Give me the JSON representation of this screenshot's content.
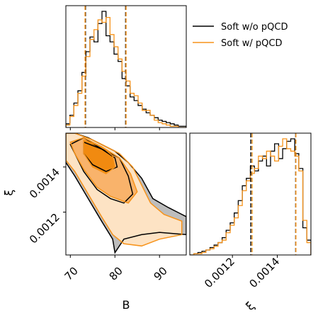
{
  "chart_data": {
    "type": "corner",
    "colors": {
      "soft": "#000000",
      "pqcd": "#f7931a",
      "pqcd_fill": [
        "#fde3c4",
        "#f9b36b",
        "#f18a10"
      ],
      "soft_fill": "#bdbdbd"
    },
    "legend": {
      "placement": "top-right",
      "entries": [
        {
          "label": "Soft w/o pQCD",
          "color": "#000000"
        },
        {
          "label": "Soft w/ pQCD",
          "color": "#f7931a"
        }
      ]
    },
    "axes": {
      "B": {
        "label": "B",
        "range": [
          69,
          96
        ],
        "ticks": [
          70,
          80,
          90
        ],
        "tick_labels": [
          "70",
          "80",
          "90"
        ]
      },
      "xi": {
        "label": "ξ",
        "range": [
          0.00101,
          0.00155
        ],
        "ticks": [
          0.0012,
          0.0014
        ],
        "tick_labels": [
          "0.0012",
          "0.0014"
        ]
      }
    },
    "panels": {
      "B_hist": {
        "bin_edges": [
          69,
          69.9,
          70.8,
          71.7,
          72.6,
          73.5,
          74.4,
          75.3,
          76.2,
          77.1,
          78.0,
          78.9,
          79.8,
          80.7,
          81.6,
          82.5,
          83.4,
          84.3,
          85.2,
          86.1,
          87.0,
          87.9,
          88.8,
          89.7,
          90.6,
          91.5,
          92.4,
          93.3,
          94.2,
          95.1,
          96.0
        ],
        "series": [
          {
            "name": "Soft w/o pQCD",
            "values": [
              3,
              10,
              20,
              30,
              45,
              62,
              74,
              70,
              85,
              95,
              75,
              70,
              60,
              54,
              40,
              34,
              25,
              22,
              18,
              15,
              12,
              10,
              8,
              6,
              5,
              4,
              3,
              2,
              1,
              1
            ]
          },
          {
            "name": "Soft w/ pQCD",
            "values": [
              2,
              9,
              18,
              28,
              42,
              58,
              72,
              80,
              88,
              86,
              90,
              76,
              66,
              56,
              46,
              38,
              28,
              26,
              20,
              14,
              14,
              10,
              6,
              4,
              3,
              2,
              1,
              1,
              0,
              0
            ]
          }
        ],
        "quantile_lines": {
          "Soft w/o pQCD": [
            73.4,
            82.4
          ],
          "Soft w/ pQCD": [
            73.3,
            82.5
          ]
        }
      },
      "xi_hist": {
        "bin_edges": [
          0.00101,
          0.001028,
          0.001046,
          0.001064,
          0.001082,
          0.0011,
          0.001118,
          0.001136,
          0.001154,
          0.001172,
          0.00119,
          0.001208,
          0.001226,
          0.001244,
          0.001262,
          0.00128,
          0.001298,
          0.001316,
          0.001334,
          0.001352,
          0.00137,
          0.001388,
          0.001406,
          0.001424,
          0.001442,
          0.00146,
          0.001478,
          0.001496,
          0.001514,
          0.001532,
          0.00155
        ],
        "series": [
          {
            "name": "Soft w/o pQCD",
            "values": [
              0,
              1,
              2,
              3,
              4,
              6,
              8,
              10,
              14,
              20,
              26,
              34,
              44,
              56,
              62,
              72,
              68,
              76,
              80,
              72,
              84,
              90,
              78,
              86,
              92,
              94,
              82,
              70,
              22,
              12
            ]
          },
          {
            "name": "Soft w/ pQCD",
            "values": [
              0,
              1,
              1,
              2,
              4,
              5,
              7,
              10,
              12,
              18,
              24,
              30,
              40,
              52,
              60,
              66,
              70,
              80,
              78,
              84,
              80,
              76,
              88,
              94,
              86,
              84,
              80,
              68,
              28,
              10
            ]
          }
        ],
        "quantile_lines": {
          "Soft w/o pQCD": [
            0.001282,
            0.001482
          ],
          "Soft w/ pQCD": [
            0.001288,
            0.001483
          ]
        }
      },
      "joint_contours": {
        "series": [
          {
            "name": "Soft w/o pQCD",
            "levels": [
              [
                [
                  69,
                  0.00155
                ],
                [
                  71,
                  0.00155
                ],
                [
                  74,
                  0.00153
                ],
                [
                  77,
                  0.0015
                ],
                [
                  80,
                  0.00147
                ],
                [
                  83,
                  0.00142
                ],
                [
                  86,
                  0.00135
                ],
                [
                  88.5,
                  0.00126
                ],
                [
                  92,
                  0.00122
                ],
                [
                  96,
                  0.00118
                ],
                [
                  96,
                  0.0011
                ],
                [
                  90,
                  0.00111
                ],
                [
                  86,
                  0.0011
                ],
                [
                  82,
                  0.00108
                ],
                [
                  80,
                  0.00102
                ],
                [
                  79.5,
                  0.00108
                ],
                [
                  77,
                  0.00116
                ],
                [
                  74,
                  0.00126
                ],
                [
                  71,
                  0.00136
                ],
                [
                  69,
                  0.00142
                ]
              ],
              [
                [
                  70,
                  0.0015
                ],
                [
                  73,
                  0.00153
                ],
                [
                  77,
                  0.00148
                ],
                [
                  81,
                  0.00144
                ],
                [
                  83,
                  0.00136
                ],
                [
                  84,
                  0.00128
                ],
                [
                  82,
                  0.00124
                ],
                [
                  79,
                  0.00126
                ],
                [
                  76,
                  0.0013
                ],
                [
                  73,
                  0.00138
                ],
                [
                  71,
                  0.00146
                ]
              ],
              [
                [
                  73,
                  0.00151
                ],
                [
                  77,
                  0.00148
                ],
                [
                  80,
                  0.00144
                ],
                [
                  80.5,
                  0.0014
                ],
                [
                  78,
                  0.00138
                ],
                [
                  75,
                  0.00141
                ],
                [
                  73,
                  0.00146
                ]
              ]
            ]
          },
          {
            "name": "Soft w/ pQCD",
            "levels": [
              [
                [
                  69,
                  0.00155
                ],
                [
                  71,
                  0.00155
                ],
                [
                  75,
                  0.00152
                ],
                [
                  78,
                  0.00149
                ],
                [
                  81,
                  0.00146
                ],
                [
                  84,
                  0.0014
                ],
                [
                  86,
                  0.00132
                ],
                [
                  88,
                  0.00124
                ],
                [
                  91,
                  0.00119
                ],
                [
                  95,
                  0.00116
                ],
                [
                  95,
                  0.0011
                ],
                [
                  90,
                  0.00108
                ],
                [
                  86,
                  0.00105
                ],
                [
                  82,
                  0.00106
                ],
                [
                  79.5,
                  0.0011
                ],
                [
                  77,
                  0.00118
                ],
                [
                  74,
                  0.00128
                ],
                [
                  71,
                  0.00138
                ],
                [
                  69,
                  0.00143
                ]
              ],
              [
                [
                  70,
                  0.00151
                ],
                [
                  73,
                  0.00153
                ],
                [
                  77,
                  0.00149
                ],
                [
                  81,
                  0.00144
                ],
                [
                  83.5,
                  0.00137
                ],
                [
                  85,
                  0.00129
                ],
                [
                  83,
                  0.00124
                ],
                [
                  79,
                  0.00127
                ],
                [
                  76,
                  0.00131
                ],
                [
                  73,
                  0.00139
                ],
                [
                  71,
                  0.00146
                ]
              ],
              [
                [
                  73,
                  0.00152
                ],
                [
                  77,
                  0.00149
                ],
                [
                  79.5,
                  0.00145
                ],
                [
                  80,
                  0.0014
                ],
                [
                  78,
                  0.00137
                ],
                [
                  75,
                  0.0014
                ],
                [
                  73,
                  0.00146
                ]
              ]
            ]
          }
        ]
      }
    }
  }
}
